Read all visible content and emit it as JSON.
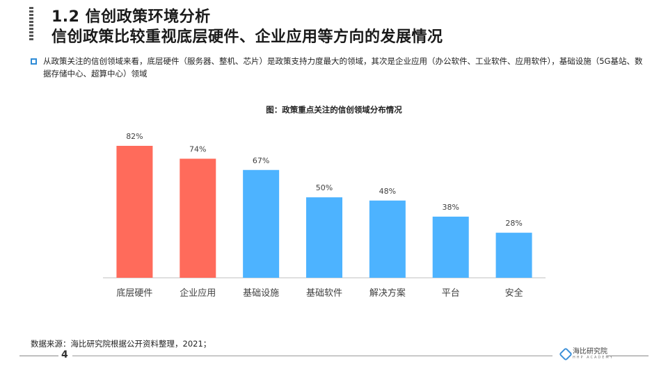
{
  "header": {
    "title_line1": "1.2 信创政策环境分析",
    "title_line2": "信创政策比较重视底层硬件、企业应用等方向的发展情况"
  },
  "intro": {
    "text": "从政策关注的信创领域来看，底层硬件（服务器、整机、芯片）是政策支持力度最大的领域，其次是企业应用（办公软件、工业软件、应用软件），基础设施（5G基站、数据存储中心、超算中心）领域"
  },
  "chart_data": {
    "type": "bar",
    "title": "图：政策重点关注的信创领域分布情况",
    "categories": [
      "底层硬件",
      "企业应用",
      "基础设施",
      "基础软件",
      "解决方案",
      "平台",
      "安全"
    ],
    "values": [
      82,
      74,
      67,
      50,
      48,
      38,
      28
    ],
    "data_labels": [
      "82%",
      "74%",
      "67%",
      "50%",
      "48%",
      "38%",
      "28%"
    ],
    "ylim": [
      0,
      100
    ],
    "grid": false,
    "colors": {
      "highlight": "#ff6b5b",
      "normal": "#4db3ff"
    },
    "highlight_count": 2
  },
  "footer": {
    "source": "数据来源：海比研究院根据公开资料整理，2021；",
    "page_number": "4",
    "logo_text": "海比研究院",
    "logo_sub": "HHP ACADEMY"
  }
}
